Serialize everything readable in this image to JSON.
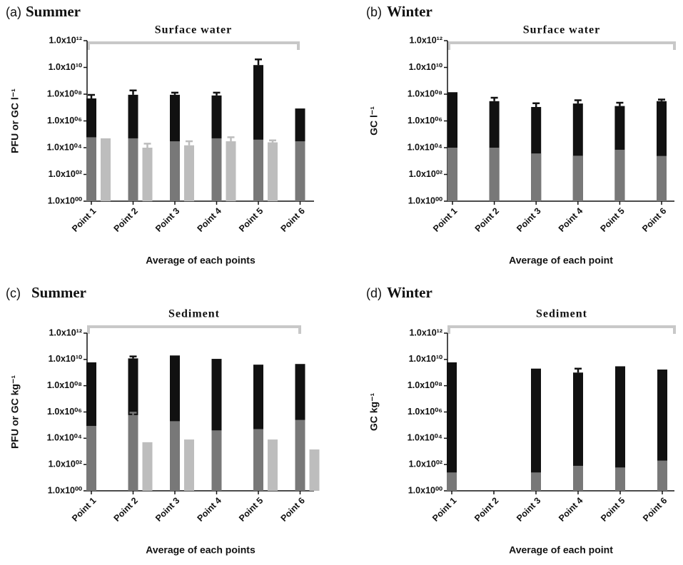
{
  "chart_data": [
    {
      "type": "bar",
      "panel": "(a)",
      "title": "Summer",
      "annotation": "Surface water",
      "y_label": "PFU or GC l⁻¹",
      "x_label": "Average of each points",
      "log_scale": true,
      "categories": [
        "Point 1",
        "Point 2",
        "Point 3",
        "Point 4",
        "Point 5",
        "Point 6"
      ],
      "ylim": [
        1,
        1000000000000
      ],
      "yticks": [
        {
          "value": 1,
          "label": "1.0x10⁰⁰"
        },
        {
          "value": 100,
          "label": "1.0x10⁰²"
        },
        {
          "value": 10000,
          "label": "1.0x10⁰⁴"
        },
        {
          "value": 1000000,
          "label": "1.0x10⁰⁶"
        },
        {
          "value": 100000000,
          "label": "1.0x10⁰⁸"
        },
        {
          "value": 10000000000,
          "label": "1.0x10¹⁰"
        },
        {
          "value": 1000000000000,
          "label": "1.0x10¹²"
        }
      ],
      "series": [
        {
          "color": "#111111",
          "values": [
            48000000,
            90000000,
            90000000,
            80000000,
            15000000000,
            8500000
          ],
          "errors": [
            40000000,
            100000000,
            40000000,
            50000000,
            25000000000,
            null
          ]
        },
        {
          "color": "#787878",
          "values": [
            60000,
            50000,
            30000,
            50000,
            40000,
            30000
          ]
        },
        {
          "color": "#bdbdbd",
          "values": [
            50000,
            10000,
            15000,
            30000,
            25000,
            null
          ],
          "errors": [
            null,
            10000,
            15000,
            30000,
            10000,
            null
          ]
        }
      ]
    },
    {
      "type": "bar",
      "panel": "(b)",
      "title": "Winter",
      "annotation": "Surface water",
      "y_label": "GC l⁻¹",
      "x_label": "Average of each point",
      "log_scale": true,
      "categories": [
        "Point 1",
        "Point 2",
        "Point 3",
        "Point 4",
        "Point 5",
        "Point 6"
      ],
      "ylim": [
        1,
        1000000000000
      ],
      "yticks": [
        {
          "value": 1,
          "label": "1.0x10⁰⁰"
        },
        {
          "value": 100,
          "label": "1.0x10⁰²"
        },
        {
          "value": 10000,
          "label": "1.0x10⁰⁴"
        },
        {
          "value": 1000000,
          "label": "1.0x10⁰⁶"
        },
        {
          "value": 100000000,
          "label": "1.0x10⁰⁸"
        },
        {
          "value": 10000000000,
          "label": "1.0x10¹⁰"
        },
        {
          "value": 1000000000000,
          "label": "1.0x10¹²"
        }
      ],
      "series": [
        {
          "color": "#111111",
          "values": [
            140000000,
            30000000,
            11000000,
            20000000,
            13000000,
            30000000
          ],
          "errors": [
            null,
            24000000,
            10000000,
            15000000,
            10000000,
            10000000
          ]
        },
        {
          "color": "#787878",
          "values": [
            10000,
            10000,
            3700,
            2500,
            7000,
            2400
          ]
        }
      ]
    },
    {
      "type": "bar",
      "panel": "(c)",
      "title": "Summer",
      "annotation": "Sediment",
      "y_label": "PFU or GC kg⁻¹",
      "x_label": "Average of each points",
      "log_scale": true,
      "categories": [
        "Point 1",
        "Point 2",
        "Point 3",
        "Point 4",
        "Point 5",
        "Point 6"
      ],
      "ylim": [
        1,
        1000000000000
      ],
      "yticks": [
        {
          "value": 1,
          "label": "1.0x10⁰⁰"
        },
        {
          "value": 100,
          "label": "1.0x10⁰²"
        },
        {
          "value": 10000,
          "label": "1.0x10⁰⁴"
        },
        {
          "value": 1000000,
          "label": "1.0x10⁰⁶"
        },
        {
          "value": 100000000,
          "label": "1.0x10⁰⁸"
        },
        {
          "value": 10000000000,
          "label": "1.0x10¹⁰"
        },
        {
          "value": 1000000000000,
          "label": "1.0x10¹²"
        }
      ],
      "series": [
        {
          "color": "#111111",
          "values": [
            6000000000,
            12000000000,
            20000000000,
            11000000000,
            4000000000,
            4500000000
          ],
          "errors": [
            null,
            5000000000,
            null,
            null,
            null,
            null
          ]
        },
        {
          "color": "#787878",
          "values": [
            87000,
            580000,
            200000,
            40000,
            50000,
            250000
          ],
          "errors": [
            null,
            300000,
            null,
            null,
            null,
            null
          ]
        },
        {
          "color": "#bdbdbd",
          "values": [
            null,
            5000,
            8000,
            null,
            8000,
            1400
          ]
        }
      ]
    },
    {
      "type": "bar",
      "panel": "(d)",
      "title": "Winter",
      "annotation": "Sediment",
      "y_label": "GC kg⁻¹",
      "x_label": "Average of each point",
      "log_scale": true,
      "categories": [
        "Point 1",
        "Point 2",
        "Point 3",
        "Point 4",
        "Point 5",
        "Point 6"
      ],
      "ylim": [
        1,
        1000000000000
      ],
      "yticks": [
        {
          "value": 1,
          "label": "1.0x10⁰⁰"
        },
        {
          "value": 100,
          "label": "1.0x10⁰²"
        },
        {
          "value": 10000,
          "label": "1.0x10⁰⁴"
        },
        {
          "value": 1000000,
          "label": "1.0x10⁰⁶"
        },
        {
          "value": 100000000,
          "label": "1.0x10⁰⁸"
        },
        {
          "value": 10000000000,
          "label": "1.0x10¹⁰"
        },
        {
          "value": 1000000000000,
          "label": "1.0x10¹²"
        }
      ],
      "series": [
        {
          "color": "#111111",
          "values": [
            6000000000,
            null,
            2000000000,
            1000000000,
            3000000000,
            1700000000
          ],
          "errors": [
            null,
            null,
            null,
            1000000000,
            null,
            null
          ]
        },
        {
          "color": "#787878",
          "values": [
            25,
            null,
            25,
            80,
            60,
            200
          ]
        }
      ]
    }
  ]
}
